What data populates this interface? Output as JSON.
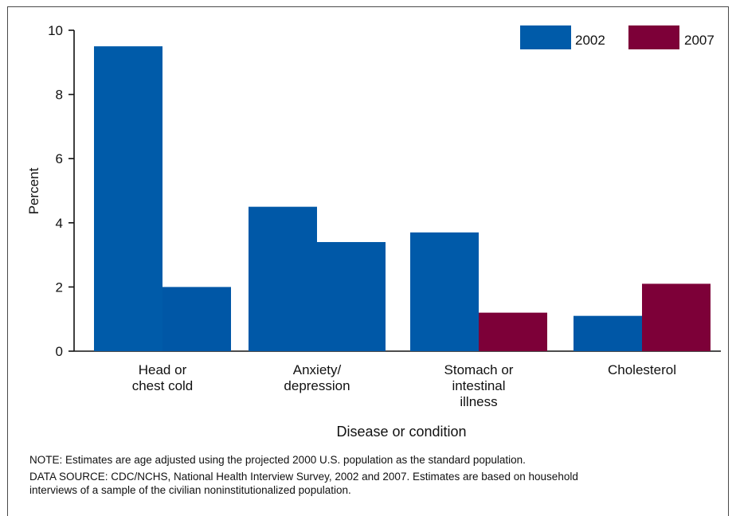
{
  "chart_data": {
    "type": "bar",
    "categories": [
      "Head or chest cold",
      "Anxiety/ depression",
      "Stomach or intestinal illness",
      "Cholesterol"
    ],
    "category_label_lines": [
      [
        "Head or",
        "chest cold"
      ],
      [
        "Anxiety/",
        "depression"
      ],
      [
        "Stomach or",
        "intestinal",
        "illness"
      ],
      [
        "Cholesterol"
      ]
    ],
    "series": [
      {
        "name": "2002",
        "values": [
          9.5,
          4.5,
          3.7,
          1.1
        ]
      },
      {
        "name": "2007",
        "values": [
          2.0,
          3.4,
          1.2,
          2.1
        ]
      }
    ],
    "bar_colors": [
      "#005BA9",
      "#0057A6",
      "#0058A7",
      "#0058A7",
      "#005AA9",
      "#7D0038",
      "#0057A6",
      "#7D0038"
    ],
    "legend_colors": [
      "#005BA9",
      "#7D0038"
    ],
    "xlabel": "Disease or condition",
    "ylabel": "Percent",
    "ylim": [
      0,
      10
    ],
    "yticks": [
      0,
      2,
      4,
      6,
      8,
      10
    ],
    "grid": false,
    "legend_position": "top-right"
  },
  "footer": {
    "note": "NOTE: Estimates are age adjusted using the projected 2000 U.S. population as the standard population.",
    "source_line1": "DATA SOURCE: CDC/NCHS, National Health Interview Survey, 2002 and 2007. Estimates are based on household",
    "source_line2": "interviews of a sample of the civilian noninstitutionalized population."
  }
}
